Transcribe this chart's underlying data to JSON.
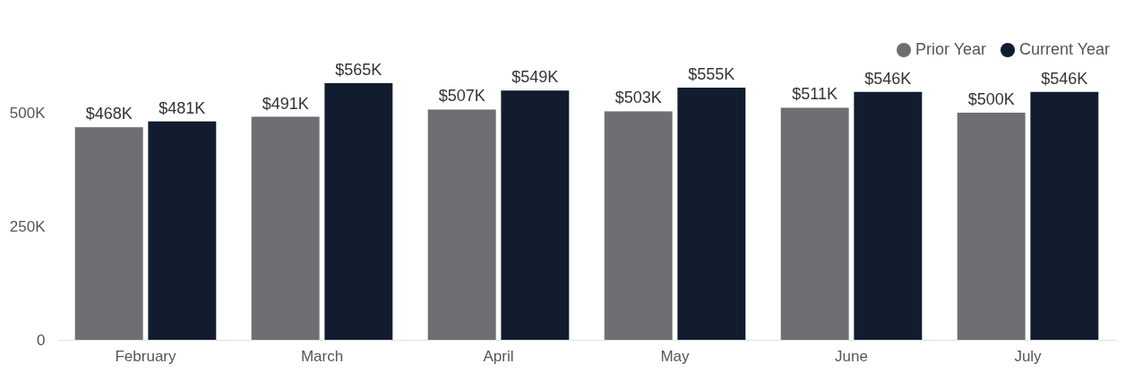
{
  "chart_data": {
    "type": "bar",
    "categories": [
      "February",
      "March",
      "April",
      "May",
      "June",
      "July"
    ],
    "series": [
      {
        "name": "Prior Year",
        "color": "#6f6f73",
        "values": [
          468000,
          491000,
          507000,
          503000,
          511000,
          500000
        ],
        "value_labels": [
          "$468K",
          "$491K",
          "$507K",
          "$503K",
          "$511K",
          "$500K"
        ]
      },
      {
        "name": "Current Year",
        "color": "#111d2e",
        "values": [
          481000,
          565000,
          549000,
          555000,
          546000,
          546000
        ],
        "value_labels": [
          "$481K",
          "$565K",
          "$549K",
          "$555K",
          "$546K",
          "$546K"
        ]
      }
    ],
    "yticks": [
      {
        "value": 0,
        "label": "0"
      },
      {
        "value": 250000,
        "label": "250K"
      },
      {
        "value": 500000,
        "label": "500K"
      }
    ],
    "ylim": [
      0,
      565000
    ],
    "grid": false,
    "legend": "top right"
  }
}
